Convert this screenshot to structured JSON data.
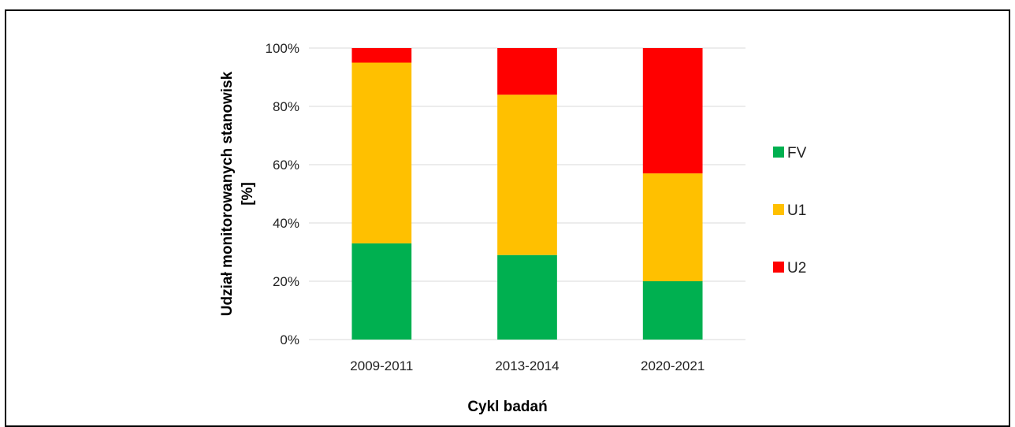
{
  "chart_data": {
    "type": "bar",
    "stacked": true,
    "categories": [
      "2009-2011",
      "2013-2014",
      "2020-2021"
    ],
    "series": [
      {
        "name": "FV",
        "color": "#00B050",
        "values": [
          33,
          29,
          20
        ]
      },
      {
        "name": "U1",
        "color": "#FFC000",
        "values": [
          62,
          55,
          37
        ]
      },
      {
        "name": "U2",
        "color": "#FF0000",
        "values": [
          5,
          16,
          43
        ]
      }
    ],
    "ylim": [
      0,
      100
    ],
    "yticks": [
      "0%",
      "20%",
      "40%",
      "60%",
      "80%",
      "100%"
    ],
    "xlabel": "Cykl badań",
    "ylabel_lines": [
      "Udział monitorowanych stanowisk",
      "[%]"
    ],
    "grid": true,
    "legend_position": "right"
  }
}
